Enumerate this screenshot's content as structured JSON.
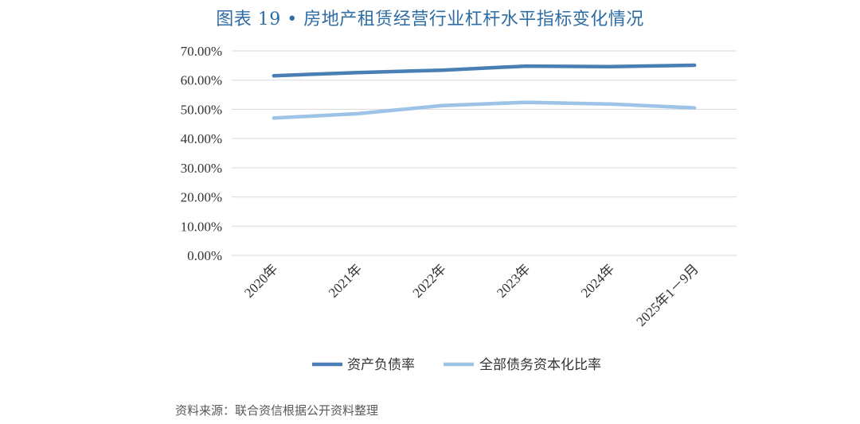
{
  "title": "图表 19 • 房地产租赁经营行业杠杆水平指标变化情况",
  "source": "资料来源：联合资信根据公开资料整理",
  "colors": {
    "title": "#2e6da4",
    "series_1": "#4a7fb5",
    "series_2": "#9dc3e6",
    "grid": "#d9d9d9"
  },
  "chart_data": {
    "type": "line",
    "categories": [
      "2020年",
      "2021年",
      "2022年",
      "2023年",
      "2024年",
      "2025年1－9月"
    ],
    "series": [
      {
        "name": "资产负债率",
        "values": [
          61.5,
          62.6,
          63.4,
          64.8,
          64.6,
          65.1
        ]
      },
      {
        "name": "全部债务资本化比率",
        "values": [
          47.0,
          48.5,
          51.3,
          52.4,
          51.8,
          50.5
        ]
      }
    ],
    "y_tick_labels": [
      "0.00%",
      "10.00%",
      "20.00%",
      "30.00%",
      "40.00%",
      "50.00%",
      "60.00%",
      "70.00%"
    ],
    "ylim": [
      0,
      70
    ],
    "y_step": 10,
    "grid": true,
    "legend_position": "bottom"
  }
}
